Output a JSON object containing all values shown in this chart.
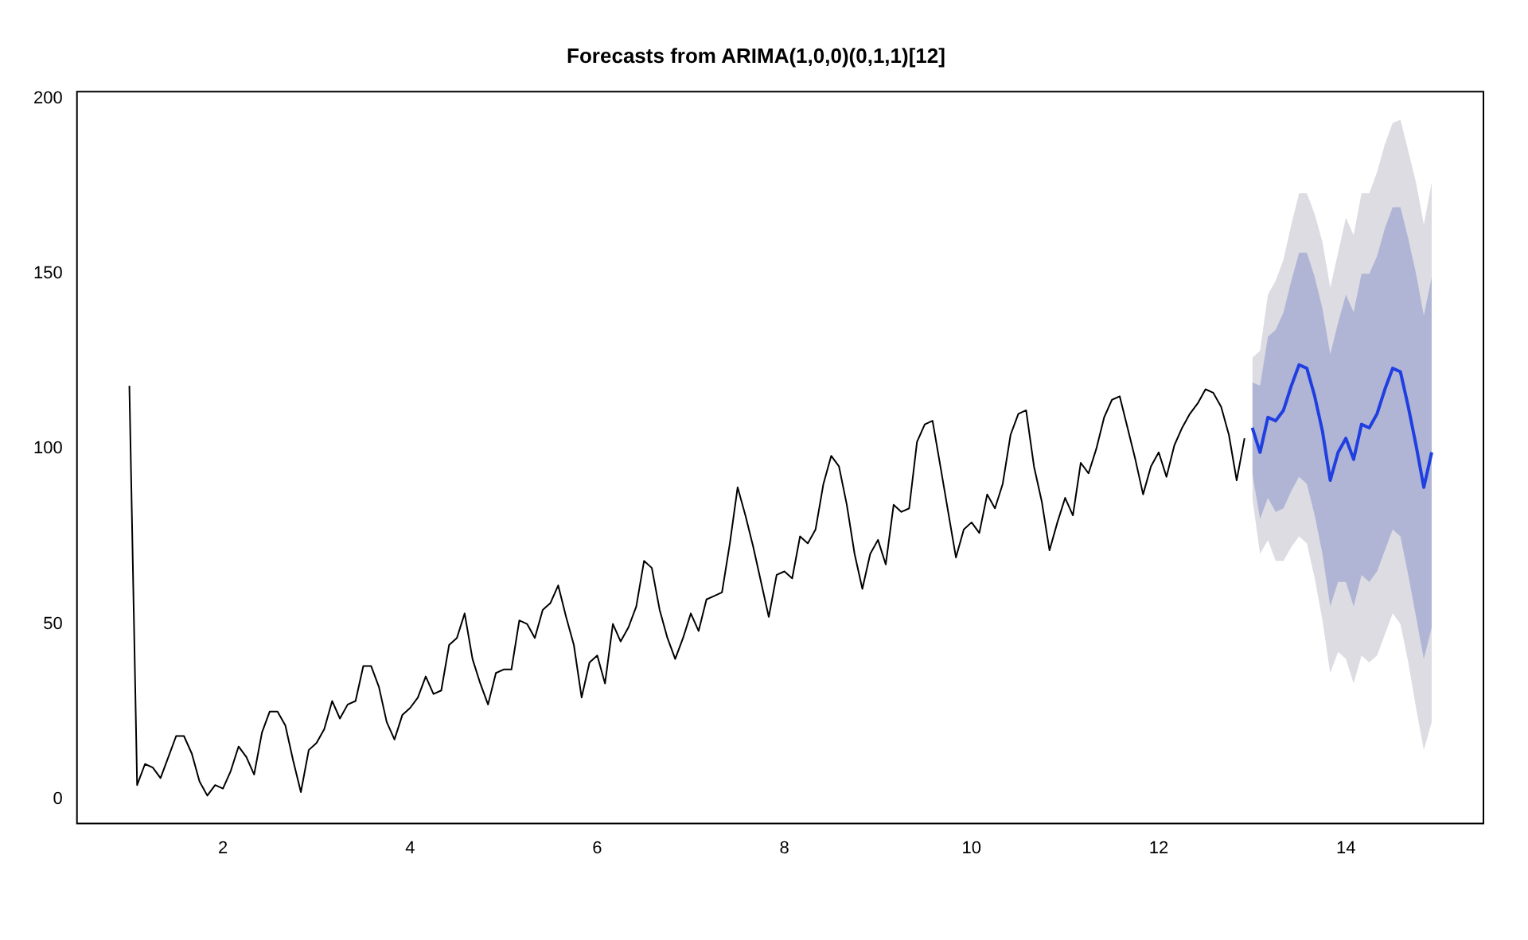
{
  "chart_data": {
    "type": "line",
    "title": "Forecasts from ARIMA(1,0,0)(0,1,1)[12]",
    "xlim": [
      0.44,
      15.47
    ],
    "xticks": [
      2,
      4,
      6,
      8,
      10,
      12,
      14
    ],
    "ylim": [
      -7,
      202
    ],
    "yticks": [
      0,
      50,
      100,
      150,
      200
    ],
    "grid": false,
    "legend": false,
    "marker": "none",
    "line_style": "solid",
    "series": [
      {
        "color": "#dcdce2",
        "x": [
          13,
          13.083,
          13.167,
          13.25,
          13.333,
          13.417,
          13.5,
          13.583,
          13.667,
          13.75,
          13.833,
          13.917,
          14,
          14.083,
          14.167,
          14.25,
          14.333,
          14.417,
          14.5,
          14.583,
          14.667,
          14.75,
          14.833,
          14.917
        ],
        "values": [
          null,
          null,
          null,
          null,
          null,
          null,
          null,
          null,
          null,
          null,
          null,
          null,
          null,
          null,
          null,
          null,
          null,
          null,
          null,
          null,
          null,
          null,
          null,
          null
        ],
        "lower": [
          86,
          70,
          74,
          68,
          68,
          72,
          75,
          73,
          63,
          51,
          36,
          42,
          40,
          33,
          41,
          39,
          41,
          47,
          53,
          50,
          39,
          26,
          14,
          22
        ],
        "upper": [
          126,
          128,
          144,
          148,
          154,
          164,
          173,
          173,
          167,
          159,
          146,
          156,
          166,
          161,
          173,
          173,
          179,
          187,
          193,
          194,
          185,
          176,
          164,
          176
        ]
      },
      {
        "color": "#b0b5d6",
        "x": [
          13,
          13.083,
          13.167,
          13.25,
          13.333,
          13.417,
          13.5,
          13.583,
          13.667,
          13.75,
          13.833,
          13.917,
          14,
          14.083,
          14.167,
          14.25,
          14.333,
          14.417,
          14.5,
          14.583,
          14.667,
          14.75,
          14.833,
          14.917
        ],
        "values": [
          null,
          null,
          null,
          null,
          null,
          null,
          null,
          null,
          null,
          null,
          null,
          null,
          null,
          null,
          null,
          null,
          null,
          null,
          null,
          null,
          null,
          null,
          null,
          null
        ],
        "lower": [
          93,
          80,
          86,
          82,
          83,
          88,
          92,
          90,
          81,
          70,
          55,
          62,
          62,
          55,
          64,
          62,
          65,
          71,
          77,
          75,
          64,
          52,
          40,
          49
        ],
        "upper": [
          119,
          118,
          132,
          134,
          139,
          148,
          156,
          156,
          149,
          140,
          127,
          136,
          144,
          139,
          150,
          150,
          155,
          163,
          169,
          169,
          160,
          150,
          138,
          149
        ]
      },
      {
        "color": "#000000",
        "x": [
          1,
          1.083,
          1.167,
          1.25,
          1.333,
          1.417,
          1.5,
          1.583,
          1.667,
          1.75,
          1.833,
          1.917,
          2,
          2.083,
          2.167,
          2.25,
          2.333,
          2.417,
          2.5,
          2.583,
          2.667,
          2.75,
          2.833,
          2.917,
          3,
          3.083,
          3.167,
          3.25,
          3.333,
          3.417,
          3.5,
          3.583,
          3.667,
          3.75,
          3.833,
          3.917,
          4,
          4.083,
          4.167,
          4.25,
          4.333,
          4.417,
          4.5,
          4.583,
          4.667,
          4.75,
          4.833,
          4.917,
          5,
          5.083,
          5.167,
          5.25,
          5.333,
          5.417,
          5.5,
          5.583,
          5.667,
          5.75,
          5.833,
          5.917,
          6,
          6.083,
          6.167,
          6.25,
          6.333,
          6.417,
          6.5,
          6.583,
          6.667,
          6.75,
          6.833,
          6.917,
          7,
          7.083,
          7.167,
          7.25,
          7.333,
          7.417,
          7.5,
          7.583,
          7.667,
          7.75,
          7.833,
          7.917,
          8,
          8.083,
          8.167,
          8.25,
          8.333,
          8.417,
          8.5,
          8.583,
          8.667,
          8.75,
          8.833,
          8.917,
          9,
          9.083,
          9.167,
          9.25,
          9.333,
          9.417,
          9.5,
          9.583,
          9.667,
          9.75,
          9.833,
          9.917,
          10,
          10.083,
          10.167,
          10.25,
          10.333,
          10.417,
          10.5,
          10.583,
          10.667,
          10.75,
          10.833,
          10.917,
          11,
          11.083,
          11.167,
          11.25,
          11.333,
          11.417,
          11.5,
          11.583,
          11.667,
          11.75,
          11.833,
          11.917,
          12,
          12.083,
          12.167,
          12.25,
          12.333,
          12.417,
          12.5,
          12.583,
          12.667,
          12.75,
          12.833,
          12.917
        ],
        "values": [
          118,
          4,
          10,
          9,
          6,
          12,
          18,
          18,
          13,
          5,
          1,
          4,
          3,
          8,
          15,
          12,
          7,
          19,
          25,
          25,
          21,
          11,
          2,
          14,
          16,
          20,
          28,
          23,
          27,
          28,
          38,
          38,
          32,
          22,
          17,
          24,
          26,
          29,
          35,
          30,
          31,
          44,
          46,
          53,
          40,
          33,
          27,
          36,
          37,
          37,
          51,
          50,
          46,
          54,
          56,
          61,
          52,
          44,
          29,
          39,
          41,
          33,
          50,
          45,
          49,
          55,
          68,
          66,
          54,
          46,
          40,
          46,
          53,
          48,
          57,
          58,
          59,
          73,
          89,
          81,
          72,
          62,
          52,
          64,
          65,
          63,
          75,
          73,
          77,
          90,
          98,
          95,
          84,
          70,
          60,
          70,
          74,
          67,
          84,
          82,
          83,
          102,
          107,
          108,
          95,
          82,
          69,
          77,
          79,
          76,
          87,
          83,
          90,
          104,
          110,
          111,
          95,
          85,
          71,
          79,
          86,
          81,
          96,
          93,
          100,
          109,
          114,
          115,
          106,
          97,
          87,
          95,
          99,
          92,
          101,
          106,
          110,
          113,
          117,
          116,
          112,
          104,
          91,
          103
        ]
      },
      {
        "color": "#1f3fe0",
        "x": [
          13,
          13.083,
          13.167,
          13.25,
          13.333,
          13.417,
          13.5,
          13.583,
          13.667,
          13.75,
          13.833,
          13.917,
          14,
          14.083,
          14.167,
          14.25,
          14.333,
          14.417,
          14.5,
          14.583,
          14.667,
          14.75,
          14.833,
          14.917
        ],
        "values": [
          106,
          99,
          109,
          108,
          111,
          118,
          124,
          123,
          115,
          105,
          91,
          99,
          103,
          97,
          107,
          106,
          110,
          117,
          123,
          122,
          112,
          101,
          89,
          99
        ]
      }
    ]
  }
}
